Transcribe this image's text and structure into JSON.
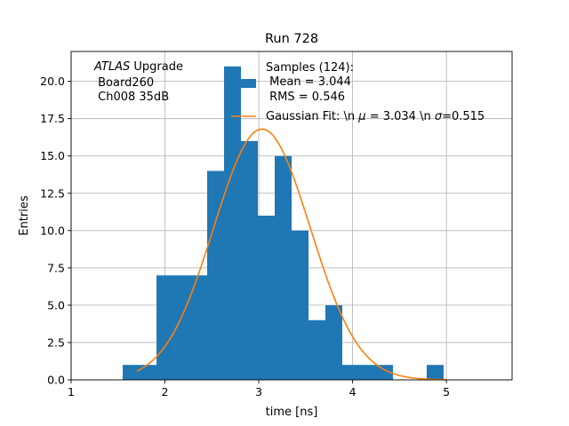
{
  "chart_data": {
    "type": "histogram",
    "title": "Run 728",
    "xlabel": "time [ns]",
    "ylabel": "Entries",
    "xlim": [
      1.0,
      5.7
    ],
    "ylim": [
      0,
      22.0
    ],
    "grid": true,
    "xticks": [
      1,
      2,
      3,
      4,
      5
    ],
    "yticks": [
      0.0,
      2.5,
      5.0,
      7.5,
      10.0,
      12.5,
      15.0,
      17.5,
      20.0
    ],
    "ytick_labels": [
      "0.0",
      "2.5",
      "5.0",
      "7.5",
      "10.0",
      "12.5",
      "15.0",
      "17.5",
      "20.0"
    ],
    "bin_edges": [
      1.55,
      1.73,
      1.91,
      2.09,
      2.27,
      2.45,
      2.63,
      2.81,
      2.99,
      3.17,
      3.35,
      3.53,
      3.71,
      3.89,
      4.07,
      4.25,
      4.43,
      4.61,
      4.79,
      4.97,
      5.15
    ],
    "counts": [
      1,
      1,
      7,
      7,
      7,
      14,
      21,
      16,
      11,
      15,
      10,
      4,
      5,
      1,
      1,
      1,
      0,
      0,
      1,
      0
    ],
    "fit": {
      "mu": 3.034,
      "sigma": 0.515,
      "amplitude": 16.8,
      "x_range": [
        1.7,
        5.0
      ]
    },
    "annotation": {
      "italic": "ATLAS",
      "rest": " Upgrade",
      "line2": " Board260",
      "line3": " Ch008 35dB"
    },
    "legend": {
      "position": "upper-right",
      "entries": [
        {
          "kind": "bar",
          "lines": [
            "Samples (124):",
            " Mean = 3.044",
            " RMS = 0.546"
          ]
        },
        {
          "kind": "line",
          "pre": "Gaussian Fit: \\n ",
          "mu_sym": "μ",
          "mid": " = 3.034 \\n ",
          "sigma_sym": "σ",
          "post": "=0.515"
        }
      ]
    },
    "colors": {
      "bars": "#1f77b4",
      "fit": "#ff7f0e",
      "grid": "#b0b0b0"
    }
  }
}
